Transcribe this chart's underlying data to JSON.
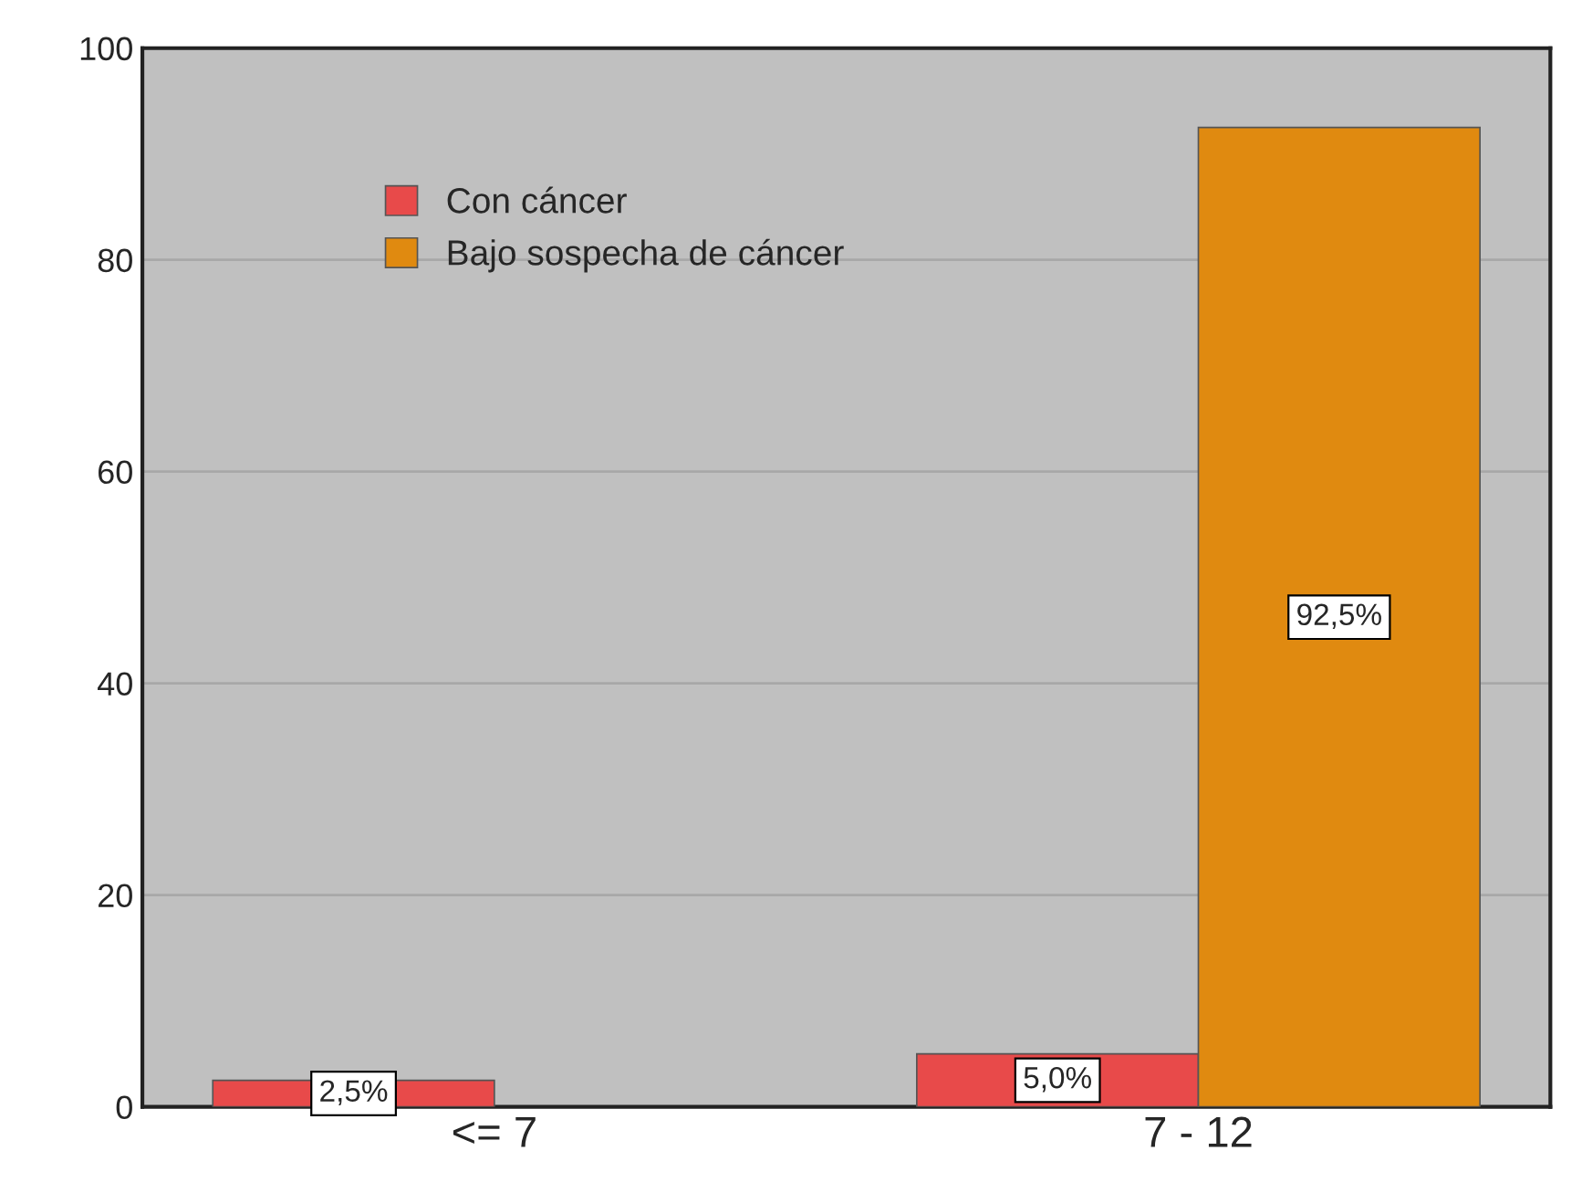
{
  "chart_data": {
    "type": "bar",
    "categories": [
      "<= 7",
      "7 - 12"
    ],
    "series": [
      {
        "name": "Con cáncer",
        "color": "#e84a4a",
        "values": [
          2.5,
          5.0
        ],
        "value_labels": [
          "2,5%",
          "5,0%"
        ]
      },
      {
        "name": "Bajo sospecha de cáncer",
        "color": "#e08a10",
        "values": [
          null,
          92.5
        ],
        "value_labels": [
          null,
          "92,5%"
        ]
      }
    ],
    "ylim": [
      0,
      100
    ],
    "yticks": [
      0,
      20,
      40,
      60,
      80,
      100
    ],
    "grid": "y",
    "legend": "top left"
  }
}
